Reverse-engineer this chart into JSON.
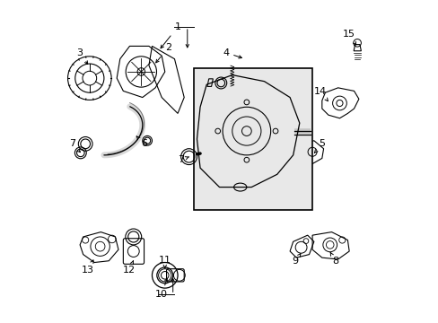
{
  "title": "",
  "background_color": "#ffffff",
  "border_color": "#000000",
  "figure_width": 4.89,
  "figure_height": 3.6,
  "dpi": 100,
  "box_fill": "#e8e8e8",
  "line_color": "#000000",
  "text_color": "#000000",
  "font_size": 8,
  "arrow_color": "#000000"
}
